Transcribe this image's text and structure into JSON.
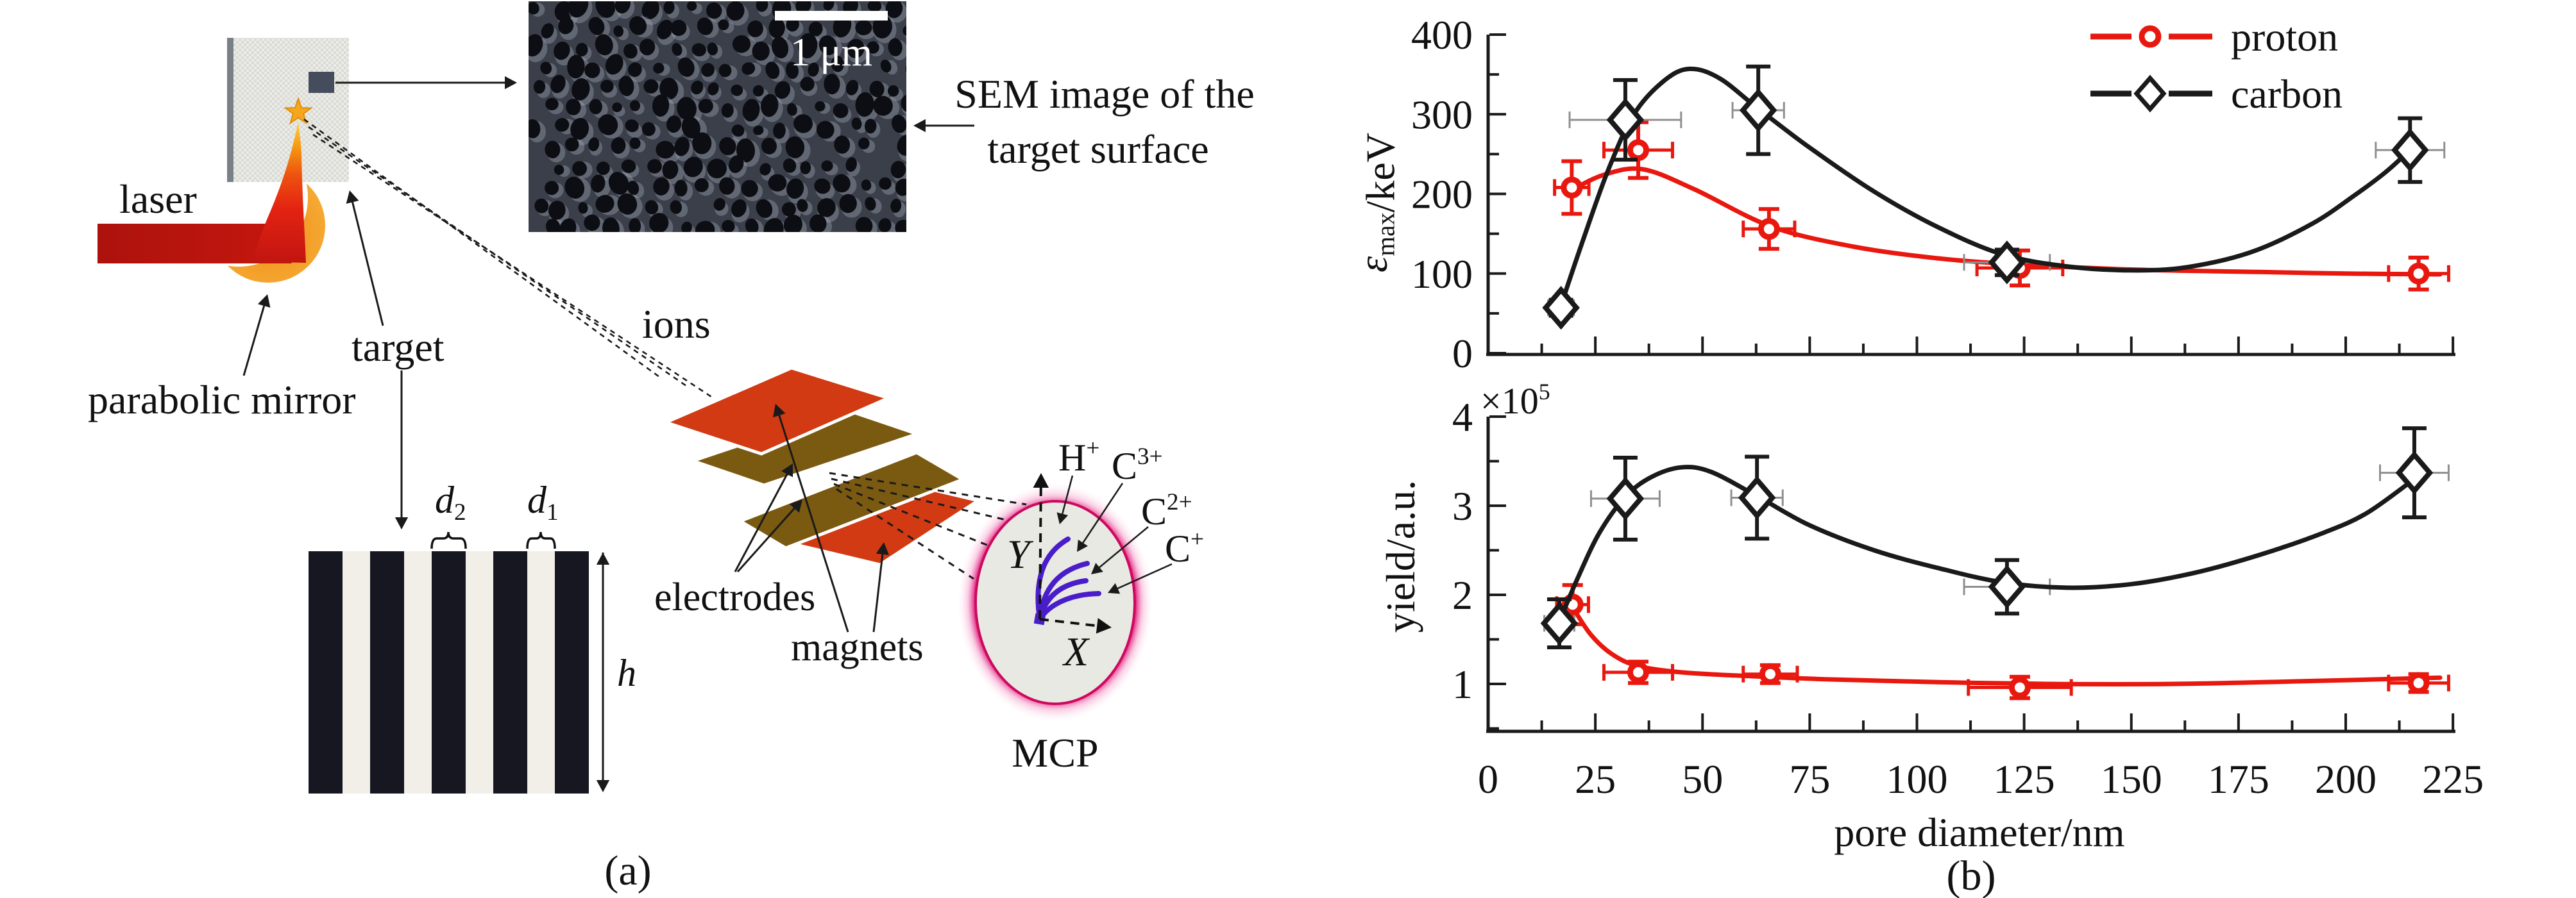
{
  "figure": {
    "panel_a_label": "(a)",
    "panel_b_label": "(b)"
  },
  "diagram": {
    "labels": {
      "laser": "laser",
      "parabolic_mirror": "parabolic mirror",
      "target": "target",
      "ions": "ions",
      "electrodes": "electrodes",
      "magnets": "magnets",
      "mcp": "MCP",
      "sem_caption_line1": "SEM image of the",
      "sem_caption_line2": "target surface",
      "scale_bar": "1 μm",
      "axis_x": "X",
      "axis_y": "Y",
      "h_dim": "h"
    },
    "rich_labels": {
      "d2": [
        {
          "t": "d",
          "i": true
        },
        {
          "t": "2",
          "sub": true
        }
      ],
      "d1": [
        {
          "t": "d",
          "i": true
        },
        {
          "t": "1",
          "sub": true
        }
      ],
      "trace_h": [
        {
          "t": "H"
        },
        {
          "t": "+",
          "sup": true
        }
      ],
      "trace_c3": [
        {
          "t": "C"
        },
        {
          "t": "3+",
          "sup": true
        }
      ],
      "trace_c2": [
        {
          "t": "C"
        },
        {
          "t": "2+",
          "sup": true
        }
      ],
      "trace_c1": [
        {
          "t": "C"
        },
        {
          "t": "+",
          "sup": true
        }
      ]
    },
    "colors": {
      "laser_beam": "#b5150f",
      "flame_yellow": "#ffd44e",
      "flame_red": "#c21612",
      "mirror_orange": "#f2a02c",
      "star_gold": "#f5a81f",
      "target_slab": "#e9e9e5",
      "slab_edge": "#7a8087",
      "sample_square": "#454c5c",
      "magnet_plate_red": "#d13a12",
      "electrode_plate_olive": "#7a5a11",
      "mcp_face": "#e9e9e3",
      "mcp_glow": "#e0006e",
      "ion_trace_blue": "#4a1dcb",
      "stripe_dark": "#171722",
      "stripe_light": "#f1efe8"
    }
  },
  "chart_data": [
    {
      "id": "top",
      "type": "line",
      "title": "",
      "xlabel": "",
      "ylabel_parts": [
        {
          "t": "ε",
          "i": true
        },
        {
          "t": "max",
          "sub": true
        },
        {
          "t": "/keV"
        }
      ],
      "xlim": [
        0,
        225
      ],
      "ylim": [
        0,
        400
      ],
      "x_major_ticks": [
        0,
        25,
        50,
        75,
        100,
        125,
        150,
        175,
        200,
        225
      ],
      "x_minor_step": 12.5,
      "x_tick_labels_shown": false,
      "y_major_ticks": [
        0,
        100,
        200,
        300,
        400
      ],
      "y_minor_step": 50,
      "grid": false,
      "legend_position": "upper right",
      "legend": [
        "proton",
        "carbon"
      ],
      "series": [
        {
          "name": "proton",
          "color": "#e8180f",
          "marker": "circle",
          "x": [
            19.5,
            35,
            65.5,
            124,
            217
          ],
          "y": [
            208,
            255,
            156,
            107,
            100
          ],
          "yerr": [
            33,
            35,
            25,
            22,
            20
          ],
          "xerr": [
            4,
            8,
            6,
            10,
            7
          ],
          "curve": [
            [
              19.5,
              205
            ],
            [
              27,
              224
            ],
            [
              36,
              231
            ],
            [
              48,
              206
            ],
            [
              66,
              159
            ],
            [
              85,
              134
            ],
            [
              105,
              119
            ],
            [
              125,
              111
            ],
            [
              150,
              105
            ],
            [
              180,
              102
            ],
            [
              200,
              100
            ],
            [
              222,
              99
            ]
          ]
        },
        {
          "name": "carbon",
          "color": "#1a1a1a",
          "marker": "diamond",
          "x": [
            17,
            32,
            63,
            121,
            215
          ],
          "y": [
            57,
            293,
            305,
            114,
            255
          ],
          "yerr": [
            10,
            50,
            55,
            16,
            40
          ],
          "xerr": [
            3,
            13,
            6,
            10,
            8
          ],
          "curve": [
            [
              17,
              60
            ],
            [
              22,
              140
            ],
            [
              28,
              230
            ],
            [
              34,
              300
            ],
            [
              41,
              342
            ],
            [
              47,
              357
            ],
            [
              54,
              345
            ],
            [
              63,
              307
            ],
            [
              75,
              258
            ],
            [
              90,
              203
            ],
            [
              105,
              158
            ],
            [
              120,
              124
            ],
            [
              135,
              109
            ],
            [
              150,
              104
            ],
            [
              163,
              108
            ],
            [
              178,
              127
            ],
            [
              192,
              162
            ],
            [
              202,
              198
            ],
            [
              209,
              226
            ],
            [
              214,
              250
            ]
          ]
        }
      ]
    },
    {
      "id": "bottom",
      "type": "line",
      "title": "",
      "xlabel": "pore diameter/nm",
      "ylabel_parts": [
        {
          "t": "yield/a.u."
        }
      ],
      "y_scale_parts": [
        {
          "t": "×10"
        },
        {
          "t": "5",
          "sup": true
        }
      ],
      "xlim": [
        0,
        225
      ],
      "ylim": [
        0.47,
        4.0
      ],
      "x_major_ticks": [
        0,
        25,
        50,
        75,
        100,
        125,
        150,
        175,
        200,
        225
      ],
      "x_minor_step": 12.5,
      "x_tick_labels_shown": true,
      "y_major_ticks": [
        1,
        2,
        3,
        4
      ],
      "y_minor_step": 0.5,
      "grid": false,
      "legend_position": "none",
      "series": [
        {
          "name": "proton",
          "color": "#e8180f",
          "marker": "circle",
          "x": [
            19.7,
            35,
            65.8,
            124,
            217
          ],
          "y": [
            1.89,
            1.13,
            1.11,
            0.96,
            1.01
          ],
          "yerr": [
            0.22,
            0.12,
            0.1,
            0.12,
            0.1
          ],
          "xerr": [
            3.7,
            8,
            6.3,
            12,
            7
          ],
          "curve": [
            [
              19.7,
              1.86
            ],
            [
              24,
              1.55
            ],
            [
              29,
              1.33
            ],
            [
              35,
              1.2
            ],
            [
              45,
              1.13
            ],
            [
              60,
              1.09
            ],
            [
              80,
              1.05
            ],
            [
              105,
              1.02
            ],
            [
              130,
              1.0
            ],
            [
              160,
              1.0
            ],
            [
              190,
              1.03
            ],
            [
              222,
              1.07
            ]
          ]
        },
        {
          "name": "carbon",
          "color": "#1a1a1a",
          "marker": "diamond",
          "x": [
            16.6,
            32,
            62.7,
            121,
            216
          ],
          "y": [
            1.68,
            3.08,
            3.09,
            2.09,
            3.37
          ],
          "yerr": [
            0.27,
            0.46,
            0.46,
            0.3,
            0.5
          ],
          "xerr": [
            3.5,
            8,
            6,
            10,
            8
          ],
          "curve": [
            [
              16.6,
              1.7
            ],
            [
              21,
              2.2
            ],
            [
              26,
              2.7
            ],
            [
              32,
              3.1
            ],
            [
              38,
              3.32
            ],
            [
              45,
              3.43
            ],
            [
              52,
              3.38
            ],
            [
              63,
              3.1
            ],
            [
              75,
              2.78
            ],
            [
              90,
              2.5
            ],
            [
              105,
              2.3
            ],
            [
              120,
              2.14
            ],
            [
              135,
              2.08
            ],
            [
              150,
              2.12
            ],
            [
              165,
              2.25
            ],
            [
              180,
              2.45
            ],
            [
              195,
              2.7
            ],
            [
              205,
              2.92
            ],
            [
              216,
              3.3
            ]
          ]
        }
      ]
    }
  ]
}
